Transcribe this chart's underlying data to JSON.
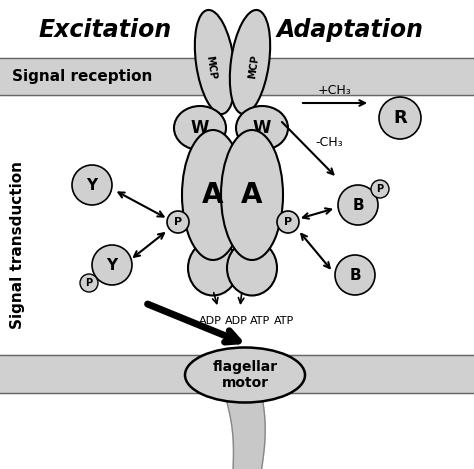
{
  "bg_color": "#ffffff",
  "membrane_color": "#d0d0d0",
  "ellipse_fill": "#d0d0d0",
  "ellipse_edge": "#000000",
  "excitation_label": "Excitation",
  "adaptation_label": "Adaptation",
  "signal_reception_label": "Signal reception",
  "signal_transduction_label": "Signal transduction",
  "flagellar_label": "flagellar\nmotor",
  "plus_ch3": "+CH₃",
  "minus_ch3": "-CH₃",
  "adp1": "ADP",
  "adp2": "ADP",
  "atp1": "ATP",
  "atp2": "ATP",
  "W_label": "W",
  "A_label": "A",
  "P_label": "P",
  "Y_label": "Y",
  "B_label": "B",
  "R_label": "R",
  "MCP_label": "MCP"
}
